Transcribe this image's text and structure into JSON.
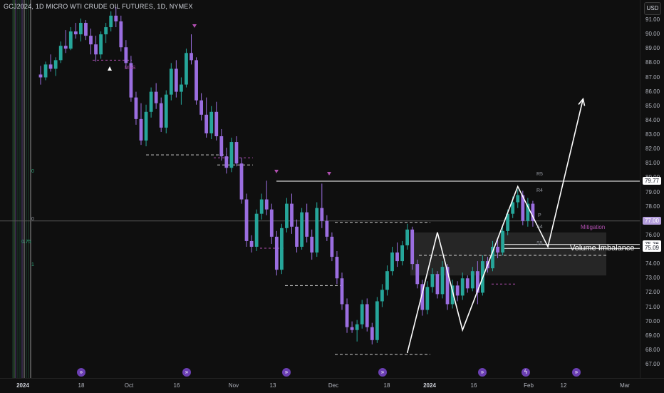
{
  "header": {
    "title": "GCJ2024, 1D MICRO WTI CRUDE OIL FUTURES, 1D, NYMEX",
    "currency_button": "USD"
  },
  "colors": {
    "background": "#0f0f0f",
    "bull_candle": "#26a69a",
    "bear_candle": "#9b6ee0",
    "drawing": "#ffffff",
    "mss_marker": "#b04fb0",
    "mitigation_text": "#b04fb0",
    "price_label_current": "#b39ddb"
  },
  "price_axis": {
    "ticks": [
      "91.00",
      "90.00",
      "89.00",
      "88.00",
      "87.00",
      "86.00",
      "85.00",
      "84.00",
      "83.00",
      "82.00",
      "81.00",
      "80.00",
      "79.00",
      "78.00",
      "76.00",
      "74.00",
      "73.00",
      "72.00",
      "71.00",
      "70.00",
      "69.00",
      "68.00",
      "67.00"
    ],
    "labels": [
      {
        "text": "79.77",
        "price": 79.77,
        "style": "white"
      },
      {
        "text": "77.00",
        "price": 77.0,
        "style": "current"
      },
      {
        "text": "75.36",
        "price": 75.36,
        "style": "white"
      },
      {
        "text": "75.09",
        "price": 75.09,
        "style": "white"
      }
    ]
  },
  "time_axis": {
    "ticks": [
      {
        "text": "2024",
        "bold": true
      },
      {
        "text": "18",
        "bold": false
      },
      {
        "text": "Oct",
        "bold": false
      },
      {
        "text": "16",
        "bold": false
      },
      {
        "text": "Nov",
        "bold": false
      },
      {
        "text": "13",
        "bold": false
      },
      {
        "text": "Dec",
        "bold": false
      },
      {
        "text": "18",
        "bold": false
      },
      {
        "text": "2024",
        "bold": true
      },
      {
        "text": "16",
        "bold": false
      },
      {
        "text": "Feb",
        "bold": false
      },
      {
        "text": "12",
        "bold": false
      },
      {
        "text": "Mar",
        "bold": false
      }
    ]
  },
  "annotations": {
    "volume_imbalance": "Volume Imbalance",
    "mitigation": "Mitigation",
    "mss": "MSS",
    "pivots": [
      "R5",
      "R4",
      "P",
      "S4",
      "S5"
    ]
  },
  "side_labels": [
    "0",
    "0",
    "0.75",
    "1"
  ],
  "chart_data": {
    "type": "candlestick",
    "title": "MICRO WTI CRUDE OIL FUTURES",
    "ylim": [
      66.5,
      92.0
    ],
    "ohlc": [
      [
        87.2,
        87.8,
        86.5,
        87.0
      ],
      [
        87.0,
        88.1,
        86.8,
        87.9
      ],
      [
        87.9,
        88.6,
        87.4,
        87.6
      ],
      [
        87.6,
        88.4,
        87.1,
        88.2
      ],
      [
        88.2,
        89.5,
        88.0,
        89.2
      ],
      [
        89.2,
        90.3,
        88.7,
        89.0
      ],
      [
        89.0,
        90.5,
        88.9,
        90.2
      ],
      [
        90.2,
        90.8,
        89.7,
        90.0
      ],
      [
        90.0,
        91.1,
        89.5,
        90.8
      ],
      [
        90.8,
        91.0,
        89.6,
        89.9
      ],
      [
        89.9,
        90.4,
        88.6,
        89.3
      ],
      [
        89.3,
        89.9,
        88.1,
        88.6
      ],
      [
        88.6,
        90.2,
        88.3,
        90.0
      ],
      [
        90.0,
        90.8,
        89.4,
        90.5
      ],
      [
        90.5,
        91.6,
        90.2,
        91.3
      ],
      [
        91.3,
        91.9,
        90.5,
        90.9
      ],
      [
        90.9,
        91.3,
        88.8,
        89.1
      ],
      [
        89.1,
        89.6,
        87.6,
        88.0
      ],
      [
        88.0,
        88.5,
        85.3,
        85.6
      ],
      [
        85.6,
        86.0,
        83.7,
        84.1
      ],
      [
        84.1,
        85.2,
        82.3,
        82.6
      ],
      [
        82.6,
        85.1,
        82.2,
        84.6
      ],
      [
        84.6,
        86.3,
        84.2,
        86.0
      ],
      [
        86.0,
        86.6,
        84.8,
        85.2
      ],
      [
        85.2,
        85.6,
        83.2,
        83.5
      ],
      [
        83.5,
        86.1,
        83.1,
        85.8
      ],
      [
        85.8,
        88.0,
        85.4,
        87.6
      ],
      [
        87.6,
        88.2,
        85.6,
        86.0
      ],
      [
        86.0,
        87.0,
        85.1,
        86.5
      ],
      [
        86.5,
        89.0,
        86.3,
        88.7
      ],
      [
        88.7,
        90.0,
        87.9,
        88.2
      ],
      [
        88.2,
        88.4,
        85.1,
        85.4
      ],
      [
        85.4,
        85.9,
        84.0,
        84.4
      ],
      [
        84.4,
        85.6,
        82.8,
        83.1
      ],
      [
        83.1,
        85.0,
        82.7,
        84.6
      ],
      [
        84.6,
        85.3,
        82.6,
        82.9
      ],
      [
        82.9,
        83.4,
        81.2,
        81.5
      ],
      [
        81.5,
        82.1,
        80.3,
        80.7
      ],
      [
        80.7,
        82.8,
        80.4,
        82.5
      ],
      [
        82.5,
        82.9,
        80.8,
        81.0
      ],
      [
        81.0,
        81.4,
        78.2,
        78.5
      ],
      [
        78.5,
        78.9,
        75.2,
        75.6
      ],
      [
        75.6,
        76.0,
        74.8,
        75.2
      ],
      [
        75.2,
        77.8,
        74.9,
        77.5
      ],
      [
        77.5,
        78.9,
        77.1,
        78.5
      ],
      [
        78.5,
        79.8,
        77.4,
        77.8
      ],
      [
        77.8,
        78.2,
        75.4,
        75.9
      ],
      [
        75.9,
        76.3,
        73.2,
        73.6
      ],
      [
        73.6,
        76.8,
        73.3,
        76.5
      ],
      [
        76.5,
        78.6,
        76.2,
        78.2
      ],
      [
        78.2,
        78.9,
        76.1,
        76.6
      ],
      [
        76.6,
        77.1,
        74.8,
        75.2
      ],
      [
        75.2,
        77.9,
        75.0,
        77.6
      ],
      [
        77.6,
        78.2,
        75.5,
        75.9
      ],
      [
        75.9,
        76.4,
        74.3,
        74.8
      ],
      [
        74.8,
        78.3,
        74.5,
        77.9
      ],
      [
        77.9,
        79.6,
        76.5,
        77.0
      ],
      [
        77.0,
        77.4,
        75.6,
        75.9
      ],
      [
        75.9,
        76.2,
        74.2,
        74.5
      ],
      [
        74.5,
        74.9,
        72.6,
        73.0
      ],
      [
        73.0,
        73.4,
        70.8,
        71.2
      ],
      [
        71.2,
        71.6,
        69.2,
        69.6
      ],
      [
        69.6,
        70.0,
        69.2,
        69.4
      ],
      [
        69.4,
        70.1,
        68.6,
        69.8
      ],
      [
        69.8,
        71.5,
        69.5,
        71.2
      ],
      [
        71.2,
        71.6,
        69.3,
        69.6
      ],
      [
        69.6,
        69.9,
        68.4,
        68.7
      ],
      [
        68.7,
        71.7,
        68.5,
        71.4
      ],
      [
        71.4,
        72.6,
        71.0,
        72.2
      ],
      [
        72.2,
        73.9,
        71.8,
        73.5
      ],
      [
        73.5,
        75.2,
        73.2,
        74.8
      ],
      [
        74.8,
        75.5,
        73.8,
        74.2
      ],
      [
        74.2,
        75.6,
        73.9,
        75.3
      ],
      [
        75.3,
        76.8,
        75.0,
        76.4
      ],
      [
        76.4,
        76.6,
        73.6,
        74.0
      ],
      [
        74.0,
        74.3,
        72.3,
        72.6
      ],
      [
        72.6,
        72.9,
        70.4,
        70.8
      ],
      [
        70.8,
        72.8,
        70.5,
        72.4
      ],
      [
        72.4,
        73.7,
        72.0,
        73.3
      ],
      [
        73.3,
        73.5,
        71.6,
        71.9
      ],
      [
        71.9,
        74.2,
        71.6,
        73.8
      ],
      [
        73.8,
        74.0,
        70.8,
        71.2
      ],
      [
        71.2,
        72.9,
        70.9,
        72.5
      ],
      [
        72.5,
        72.8,
        71.4,
        71.8
      ],
      [
        71.8,
        73.4,
        71.5,
        73.0
      ],
      [
        73.0,
        73.2,
        72.0,
        72.3
      ],
      [
        72.3,
        73.8,
        72.1,
        73.5
      ],
      [
        73.5,
        74.2,
        71.2,
        72.0
      ],
      [
        72.0,
        74.6,
        71.8,
        74.2
      ],
      [
        74.2,
        74.5,
        73.4,
        73.7
      ],
      [
        73.7,
        75.6,
        73.5,
        75.2
      ],
      [
        75.2,
        75.8,
        74.4,
        74.8
      ],
      [
        74.8,
        76.6,
        74.6,
        76.3
      ],
      [
        76.3,
        77.8,
        76.0,
        77.5
      ],
      [
        77.5,
        78.7,
        77.2,
        78.3
      ],
      [
        78.3,
        79.2,
        77.9,
        78.8
      ],
      [
        78.8,
        79.1,
        76.7,
        77.0
      ],
      [
        77.0,
        78.6,
        76.6,
        78.2
      ],
      [
        78.2,
        78.4,
        76.6,
        77.0
      ]
    ],
    "horizontal_levels": [
      {
        "price": 79.77,
        "label": "79.77"
      },
      {
        "price": 77.0,
        "label": "77.00"
      },
      {
        "price": 75.36,
        "label": "75.36"
      },
      {
        "price": 75.09,
        "label": "75.09"
      }
    ],
    "drawn_path": [
      [
        73,
        67.8
      ],
      [
        79,
        76.2
      ],
      [
        84,
        69.4
      ],
      [
        95,
        79.4
      ],
      [
        101,
        75.2
      ],
      [
        108,
        85.5
      ]
    ]
  }
}
